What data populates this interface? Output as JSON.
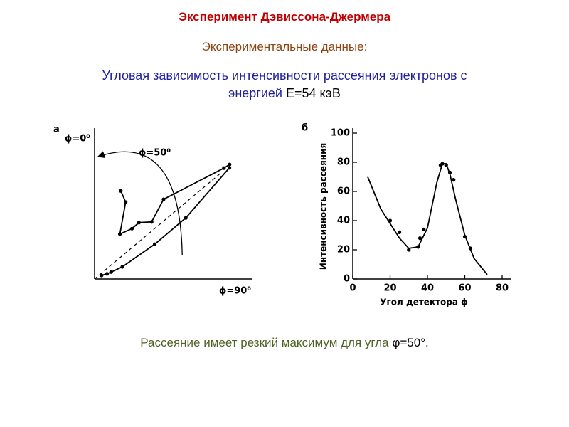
{
  "title": "Эксперимент Дэвиссона-Джермера",
  "subtitle": "Экспериментальные данные:",
  "description": [
    "Угловая зависимость интенсивности рассеяния электронов с",
    "энергией",
    "Е=54 кэВ"
  ],
  "conclusion": [
    "Рассеяние имеет резкий максимум для угла",
    "φ=50°."
  ],
  "chart_data": [
    {
      "type": "polar",
      "panel": "а",
      "theta": [
        16.6,
        22,
        29.4,
        36.6,
        38.2,
        45,
        40.9,
        49.4,
        49.7,
        50.5,
        56.2,
        60,
        66.4,
        67.4,
        67.6,
        63
      ],
      "r": [
        41,
        37,
        23,
        28,
        32,
        36,
        47,
        76,
        79,
        78,
        49,
        31,
        13.5,
        8,
        6,
        3.5
      ],
      "rlim": [
        0,
        80
      ],
      "thetaticks": [
        {
          "value": 0,
          "label": "ϕ=0⁰"
        },
        {
          "value": 50,
          "label": "ϕ=50⁰"
        },
        {
          "value": 90,
          "label": "ϕ=90⁰"
        }
      ],
      "color": "#000000"
    },
    {
      "type": "scatter",
      "panel": "б",
      "xlabel": "Угол детектора ϕ",
      "ylabel": "Интенсивность рассеяния",
      "x": [
        20,
        25,
        30,
        35,
        36,
        38,
        47,
        48,
        50,
        52,
        54,
        60,
        63
      ],
      "y": [
        40,
        32,
        20,
        22,
        28,
        34,
        78,
        79,
        78,
        73,
        68,
        29,
        21
      ],
      "curve": {
        "x": [
          8,
          15,
          20,
          25,
          30,
          35,
          40,
          45,
          48,
          50,
          52,
          55,
          60,
          65,
          72
        ],
        "y": [
          70,
          48,
          38,
          28,
          21,
          22,
          35,
          66,
          79,
          79,
          72,
          55,
          30,
          14,
          3
        ]
      },
      "xlim": [
        0,
        80
      ],
      "ylim": [
        0,
        100
      ],
      "xticks": [
        0,
        20,
        40,
        60,
        80
      ],
      "yticks": [
        0,
        20,
        40,
        60,
        80,
        100
      ],
      "color": "#000000"
    }
  ]
}
